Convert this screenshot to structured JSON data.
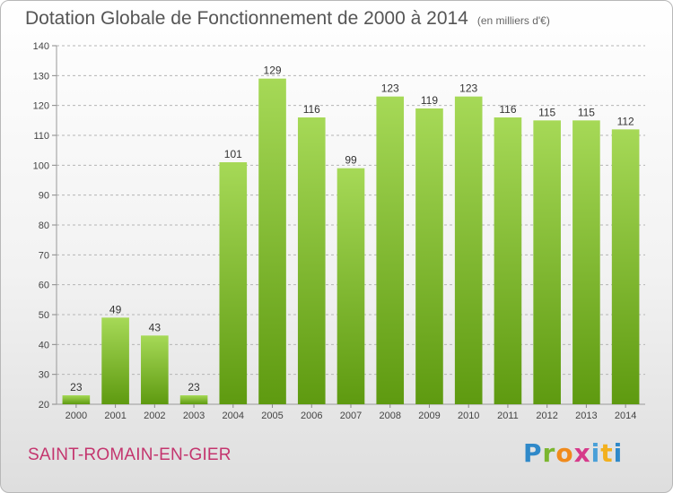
{
  "header": {
    "title": "Dotation Globale de Fonctionnement de 2000 à 2014",
    "subtitle": "(en milliers d'€)"
  },
  "footer": {
    "commune": "SAINT-ROMAIN-EN-GIER",
    "logo_letters": [
      "P",
      "r",
      "o",
      "x",
      "i",
      "t",
      "i"
    ]
  },
  "colors": {
    "bar_top": "#a6d957",
    "bar_bottom": "#5e9a10",
    "grid": "#b5b5b5",
    "commune_text": "#c4356e"
  },
  "chart_data": {
    "type": "bar",
    "title": "Dotation Globale de Fonctionnement de 2000 à 2014",
    "subtitle": "(en milliers d'€)",
    "xlabel": "",
    "ylabel": "",
    "categories": [
      "2000",
      "2001",
      "2002",
      "2003",
      "2004",
      "2005",
      "2006",
      "2007",
      "2008",
      "2009",
      "2010",
      "2011",
      "2012",
      "2013",
      "2014"
    ],
    "values": [
      23,
      49,
      43,
      23,
      101,
      129,
      116,
      99,
      123,
      119,
      123,
      116,
      115,
      115,
      112
    ],
    "ylim": [
      20,
      140
    ],
    "yticks": [
      20,
      30,
      40,
      50,
      60,
      70,
      80,
      90,
      100,
      110,
      120,
      130,
      140
    ],
    "grid": true,
    "legend": "none"
  }
}
